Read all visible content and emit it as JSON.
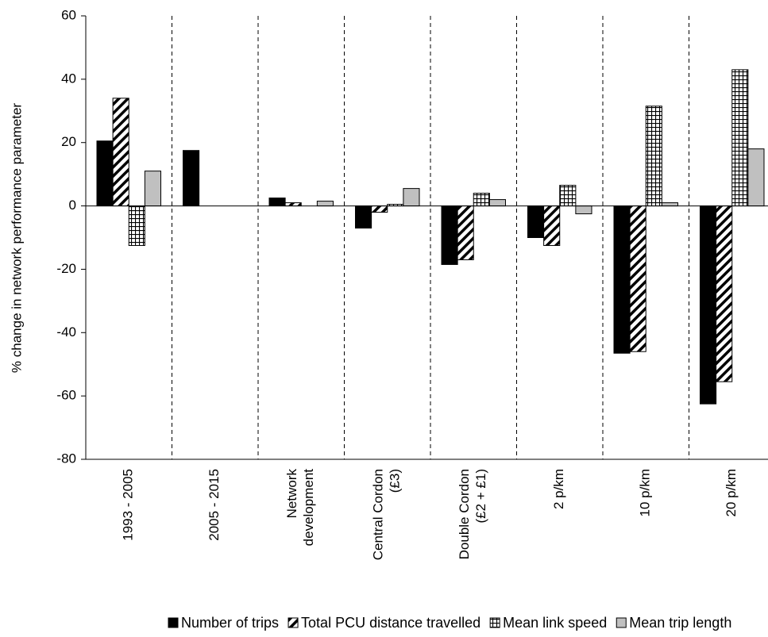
{
  "chart_data": {
    "type": "bar",
    "y_label": "% change  in network performance parameter",
    "categories": [
      [
        "1993 - 2005"
      ],
      [
        "2005 - 2015"
      ],
      [
        "Network",
        "development"
      ],
      [
        "Central Cordon",
        "(£3)"
      ],
      [
        "Double Cordon",
        "(£2 + £1)"
      ],
      [
        "2 p/km"
      ],
      [
        "10 p/km"
      ],
      [
        "20 p/km"
      ]
    ],
    "series": [
      {
        "name": "Number of trips",
        "color": "#000000",
        "pattern": "solid",
        "values": [
          20.5,
          17.5,
          2.5,
          -7,
          -18.5,
          -10,
          -46.5,
          -62.5
        ]
      },
      {
        "name": "Total PCU  distance travelled",
        "color": "#000000",
        "pattern": "diagonal",
        "values": [
          34,
          null,
          1,
          -2,
          -17,
          -12.5,
          -46,
          -55.5
        ]
      },
      {
        "name": "Mean link speed",
        "color": "#000000",
        "pattern": "grid",
        "values": [
          -12.5,
          null,
          null,
          0.5,
          4,
          6.5,
          31.5,
          43
        ]
      },
      {
        "name": "Mean trip length",
        "color": "#c0c0c0",
        "pattern": "solid",
        "values": [
          11,
          null,
          1.5,
          5.5,
          2,
          -2.5,
          1,
          18
        ]
      }
    ],
    "ylim": [
      -80,
      60
    ],
    "yticks": [
      -80,
      -60,
      -40,
      -20,
      0,
      20,
      40,
      60
    ],
    "separators": true
  }
}
